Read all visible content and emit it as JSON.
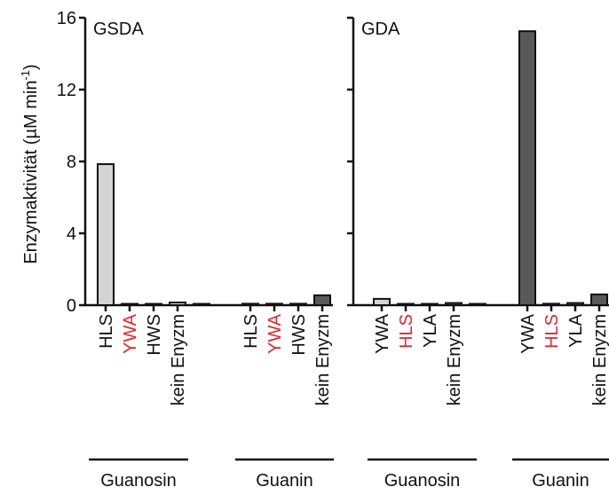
{
  "chart_data": {
    "type": "bar",
    "ylabel": "Enzymaktivität (µM min",
    "ylabel_sup": "-1",
    "ylabel_close": ")",
    "ylim": [
      0,
      16
    ],
    "yticks": [
      0,
      4,
      8,
      12,
      16
    ],
    "colors": {
      "GSDA": "#d4d4d4",
      "GDA": "#595959",
      "highlight": "#e0262b",
      "text": "#111111"
    },
    "panels": [
      {
        "title": "GSDA",
        "color": "#d4d4d4",
        "groups": [
          {
            "name": "Guanosin",
            "bars": [
              {
                "label": "HLS",
                "value": 7.85,
                "highlight": false
              },
              {
                "label": "YWA",
                "value": 0.05,
                "highlight": true
              },
              {
                "label": "HWS",
                "value": 0.05,
                "highlight": false
              },
              {
                "label": "kein Enyzm",
                "value": 0.15,
                "highlight": false
              },
              {
                "label": "",
                "value": 0.03,
                "highlight": false
              }
            ]
          },
          {
            "name": "Guanin",
            "bars": [
              {
                "label": "HLS",
                "value": 0.08,
                "highlight": false
              },
              {
                "label": "YWA",
                "value": 0.08,
                "highlight": true
              },
              {
                "label": "HWS",
                "value": 0.08,
                "highlight": false
              },
              {
                "label": "kein Enyzm",
                "value": 0.55,
                "highlight": false,
                "color": "#595959"
              }
            ]
          }
        ]
      },
      {
        "title": "GDA",
        "color": "#595959",
        "groups": [
          {
            "name": "Guanosin",
            "bars": [
              {
                "label": "YWA",
                "value": 0.35,
                "highlight": false,
                "color": "#d4d4d4"
              },
              {
                "label": "HLS",
                "value": 0.03,
                "highlight": true
              },
              {
                "label": "YLA",
                "value": 0.06,
                "highlight": false
              },
              {
                "label": "kein Enyzm",
                "value": 0.12,
                "highlight": false
              },
              {
                "label": "",
                "value": 0.03,
                "highlight": false
              }
            ]
          },
          {
            "name": "Guanin",
            "bars": [
              {
                "label": "YWA",
                "value": 15.25,
                "highlight": false
              },
              {
                "label": "HLS",
                "value": 0.08,
                "highlight": true
              },
              {
                "label": "YLA",
                "value": 0.12,
                "highlight": false
              },
              {
                "label": "kein Enyzm",
                "value": 0.6,
                "highlight": false
              }
            ]
          }
        ]
      }
    ]
  }
}
